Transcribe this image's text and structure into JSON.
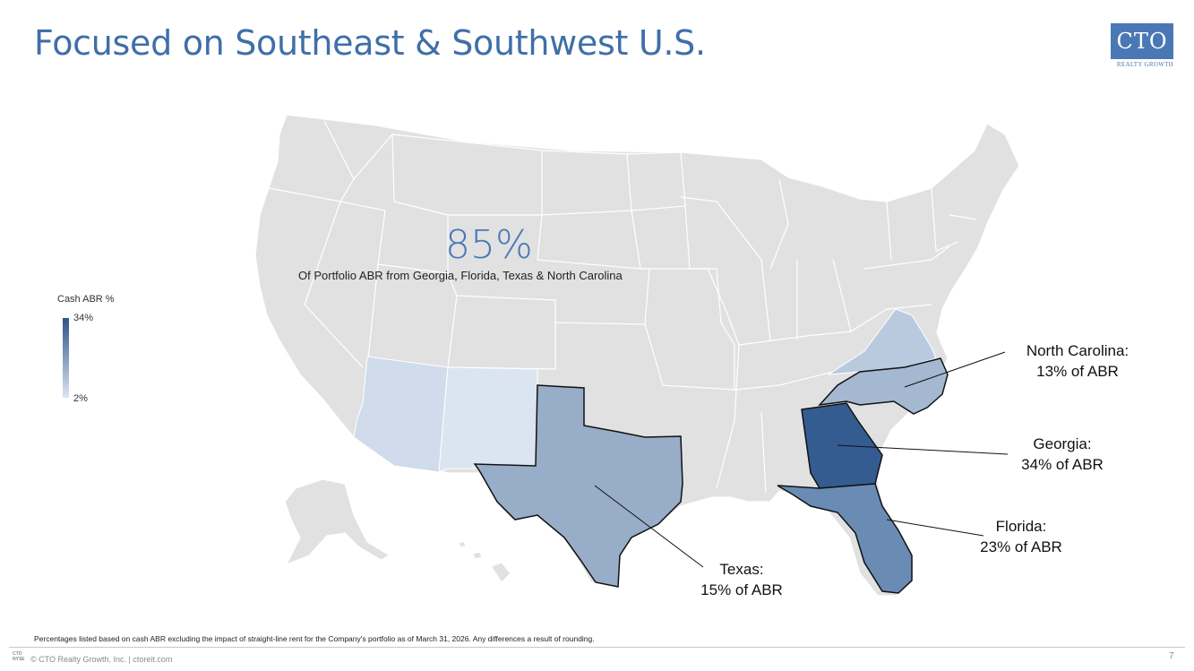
{
  "header": {
    "title": "Focused on Southeast & Southwest U.S.",
    "logo_text": "CTO",
    "logo_subtext": "REALTY GROWTH"
  },
  "stat": {
    "value": "85%",
    "description": "Of Portfolio ABR from Georgia, Florida, Texas & North Carolina"
  },
  "legend": {
    "title": "Cash ABR %",
    "max_label": "34%",
    "min_label": "2%",
    "color_max": "#2e5487",
    "color_min": "#dbe5f2"
  },
  "highlighted_states": [
    {
      "state": "Georgia",
      "value_pct": 34,
      "color": "#355c90"
    },
    {
      "state": "Florida",
      "value_pct": 23,
      "color": "#6a8bb4"
    },
    {
      "state": "Texas",
      "value_pct": 15,
      "color": "#97adc8"
    },
    {
      "state": "North Carolina",
      "value_pct": 13,
      "color": "#a4b8d1"
    },
    {
      "state": "Virginia",
      "color": "#b9cadf"
    },
    {
      "state": "Arizona",
      "color": "#d0dcec"
    },
    {
      "state": "New Mexico",
      "color": "#dbe5f1"
    }
  ],
  "callouts": {
    "north_carolina": {
      "name": "North Carolina:",
      "value": "13% of ABR"
    },
    "georgia": {
      "name": "Georgia:",
      "value": "34% of ABR"
    },
    "florida": {
      "name": "Florida:",
      "value": "23% of ABR"
    },
    "texas": {
      "name": "Texas:",
      "value": "15% of ABR"
    }
  },
  "footer": {
    "footnote": "Percentages listed based on cash ABR excluding the impact of straight-line rent for the Company's portfolio as of March 31, 2026. Any differences a result of rounding.",
    "logo_line1": "CTO",
    "logo_line2": "NYSE",
    "copyright": "© CTO Realty Growth, Inc. | ctoreit.com",
    "page_number": "7"
  }
}
